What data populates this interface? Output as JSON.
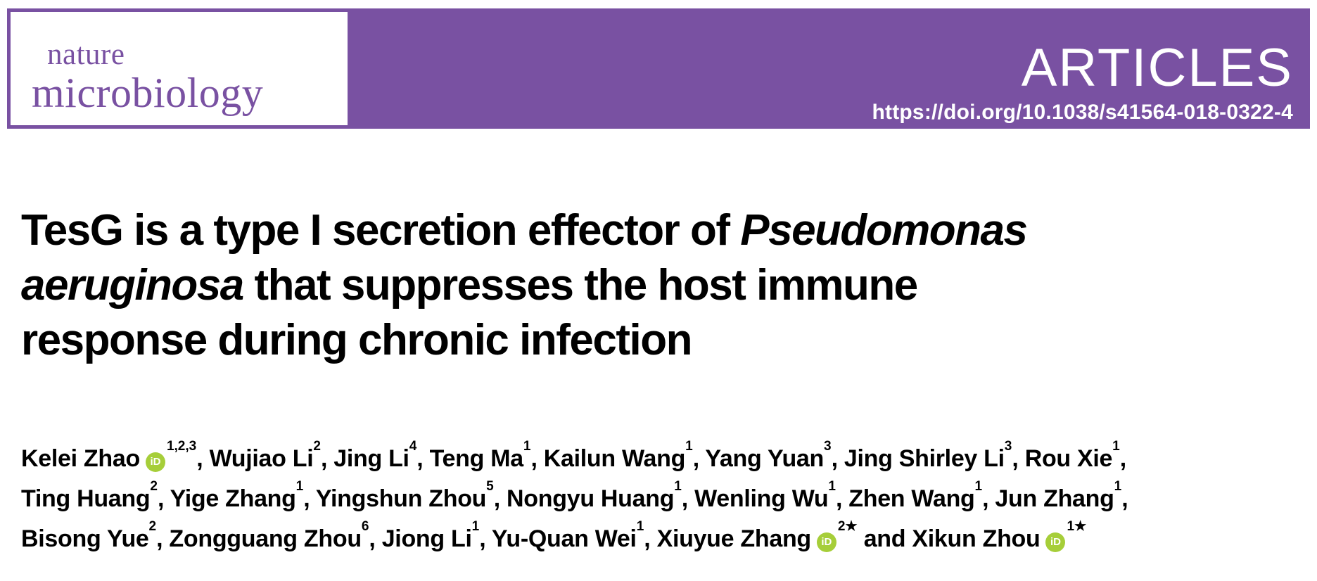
{
  "colors": {
    "brand_purple": "#7951A2",
    "orcid_green": "#A6CE39",
    "text_black": "#000000",
    "white": "#FFFFFF"
  },
  "journal": {
    "name_line1": "nature",
    "name_line2": "microbiology"
  },
  "header": {
    "kicker": "ARTICLES",
    "doi": "https://doi.org/10.1038/s41564-018-0322-4"
  },
  "title": {
    "full_text": "TesG is a type I secretion effector of Pseudomonas aeruginosa that suppresses the host immune response during chronic infection",
    "lines": [
      {
        "segments": [
          {
            "text": "TesG is a type I secretion effector of ",
            "italic": false
          },
          {
            "text": "Pseudomonas",
            "italic": true
          }
        ]
      },
      {
        "segments": [
          {
            "text": "aeruginosa",
            "italic": true
          },
          {
            "text": " that suppresses the host immune",
            "italic": false
          }
        ]
      },
      {
        "segments": [
          {
            "text": "response during chronic infection",
            "italic": false
          }
        ]
      }
    ]
  },
  "authors": {
    "orcid_icon_label": "iD",
    "lines": [
      [
        {
          "name": "Kelei Zhao",
          "orcid": true,
          "sup": "1,2,3",
          "after": ", "
        },
        {
          "name": "Wujiao Li",
          "orcid": false,
          "sup": "2",
          "after": ", "
        },
        {
          "name": "Jing Li",
          "orcid": false,
          "sup": "4",
          "after": ", "
        },
        {
          "name": "Teng Ma",
          "orcid": false,
          "sup": "1",
          "after": ", "
        },
        {
          "name": "Kailun Wang",
          "orcid": false,
          "sup": "1",
          "after": ", "
        },
        {
          "name": "Yang Yuan",
          "orcid": false,
          "sup": "3",
          "after": ", "
        },
        {
          "name": "Jing Shirley Li",
          "orcid": false,
          "sup": "3",
          "after": ", "
        },
        {
          "name": "Rou Xie",
          "orcid": false,
          "sup": "1",
          "after": ","
        }
      ],
      [
        {
          "name": "Ting Huang",
          "orcid": false,
          "sup": "2",
          "after": ", "
        },
        {
          "name": "Yige Zhang",
          "orcid": false,
          "sup": "1",
          "after": ", "
        },
        {
          "name": "Yingshun Zhou",
          "orcid": false,
          "sup": "5",
          "after": ", "
        },
        {
          "name": "Nongyu Huang",
          "orcid": false,
          "sup": "1",
          "after": ", "
        },
        {
          "name": "Wenling Wu",
          "orcid": false,
          "sup": "1",
          "after": ", "
        },
        {
          "name": "Zhen Wang",
          "orcid": false,
          "sup": "1",
          "after": ", "
        },
        {
          "name": "Jun Zhang",
          "orcid": false,
          "sup": "1",
          "after": ","
        }
      ],
      [
        {
          "name": "Bisong Yue",
          "orcid": false,
          "sup": "2",
          "after": ", "
        },
        {
          "name": "Zongguang Zhou",
          "orcid": false,
          "sup": "6",
          "after": ", "
        },
        {
          "name": "Jiong Li",
          "orcid": false,
          "sup": "1",
          "after": ", "
        },
        {
          "name": "Yu-Quan Wei",
          "orcid": false,
          "sup": "1",
          "after": ", "
        },
        {
          "name": "Xiuyue Zhang",
          "orcid": true,
          "sup": "2★",
          "after": " and "
        },
        {
          "name": "Xikun Zhou",
          "orcid": true,
          "sup": "1★",
          "after": ""
        }
      ]
    ]
  }
}
